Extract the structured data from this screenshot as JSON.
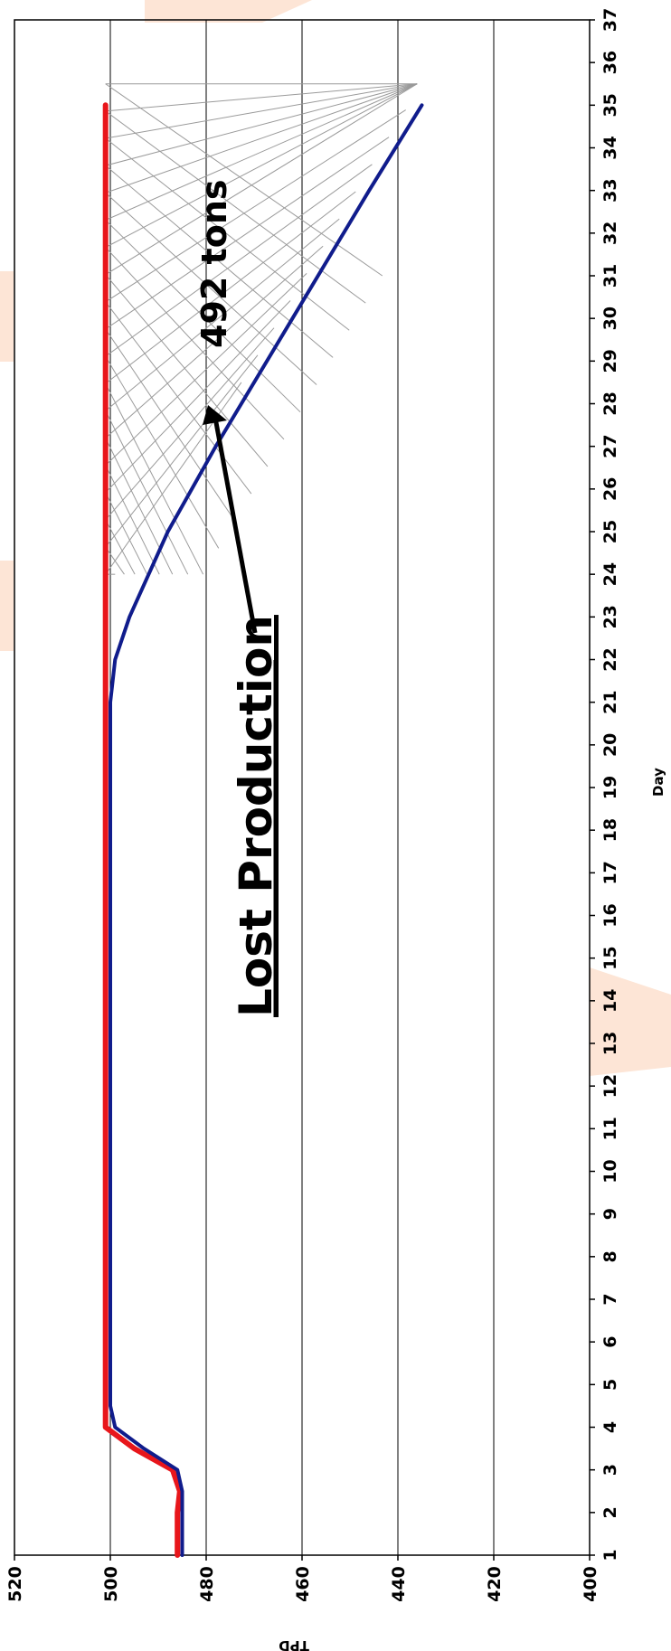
{
  "chart_data": {
    "type": "line",
    "orientation": "rotated-90",
    "xlabel": "Day",
    "ylabel": "TPD",
    "xlim": [
      1,
      37
    ],
    "ylim": [
      400,
      520
    ],
    "x_ticks": [
      "1",
      "2",
      "3",
      "4",
      "5",
      "6",
      "7",
      "8",
      "9",
      "10",
      "11",
      "12",
      "13",
      "14",
      "15",
      "16",
      "17",
      "18",
      "19",
      "20",
      "21",
      "22",
      "23",
      "24",
      "25",
      "26",
      "27",
      "28",
      "29",
      "30",
      "31",
      "32",
      "33",
      "34",
      "35",
      "36",
      "37"
    ],
    "y_ticks": [
      "400",
      "420",
      "440",
      "460",
      "480",
      "500",
      "520"
    ],
    "grid": true,
    "series": [
      {
        "color": "#e8161b",
        "x": [
          1,
          2,
          2.5,
          3,
          3.5,
          4,
          4.5,
          5,
          6,
          10,
          15,
          20,
          25,
          30,
          35
        ],
        "y": [
          486,
          486,
          485.5,
          487,
          495,
          501,
          501,
          501,
          501,
          501,
          501,
          501,
          501,
          501,
          501
        ]
      },
      {
        "color": "#101c8c",
        "x": [
          1,
          2,
          2.5,
          3,
          3.5,
          4,
          4.5,
          5,
          10,
          15,
          20,
          21,
          22,
          23,
          24,
          25,
          27,
          30,
          33,
          35
        ],
        "y": [
          485,
          485,
          485,
          486,
          493,
          499,
          500,
          500,
          500,
          500,
          500,
          500,
          499,
          496,
          492,
          488,
          478,
          462,
          446,
          435
        ]
      }
    ],
    "annotations": {
      "lost_production": "Lost Production",
      "lost_tons": "492 tons"
    }
  },
  "colors": {
    "grid": "#000000",
    "hatch": "#9a9a9a",
    "arrow": "#000000",
    "watermark": "#fde5d6"
  }
}
